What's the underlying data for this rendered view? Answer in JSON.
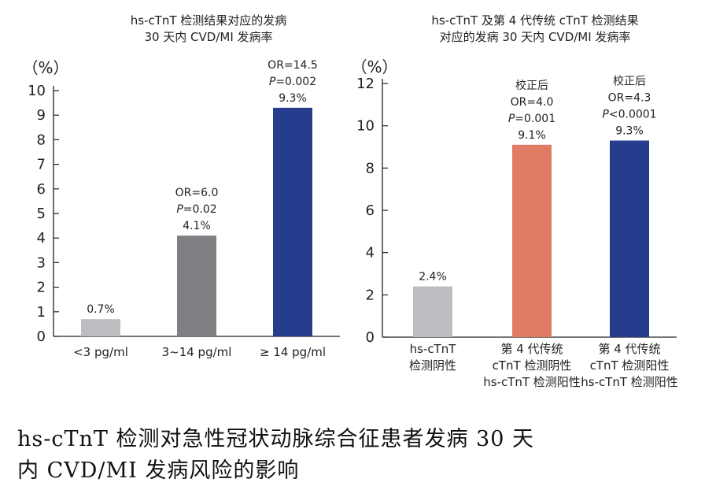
{
  "chart_data": [
    {
      "type": "bar",
      "title_lines": [
        "hs-cTnT 检测结果对应的发病",
        "30 天内 CVD/MI 发病率"
      ],
      "ylabel": "（%）",
      "ylim": [
        0,
        10
      ],
      "yticks": [
        "0",
        "1",
        "2",
        "3",
        "4",
        "5",
        "6",
        "7",
        "8",
        "9",
        "10"
      ],
      "categories": [
        [
          "<3 pg/ml"
        ],
        [
          "3~14 pg/ml"
        ],
        [
          "≥ 14 pg/ml"
        ]
      ],
      "values": [
        0.7,
        4.1,
        9.3
      ],
      "colors": [
        "#bcbdc1",
        "#7f8084",
        "#253d8c"
      ],
      "annotations": [
        [
          "0.7%"
        ],
        [
          "OR=6.0",
          "P=0.02",
          "4.1%"
        ],
        [
          "OR=14.5",
          "P=0.002",
          "9.3%"
        ]
      ]
    },
    {
      "type": "bar",
      "title_lines": [
        "hs-cTnT 及第 4 代传统 cTnT 检测结果",
        "对应的发病 30 天内 CVD/MI 发病率"
      ],
      "ylabel": "（%）",
      "ylim": [
        0,
        12
      ],
      "yticks": [
        "0",
        "2",
        "4",
        "6",
        "8",
        "10",
        "12"
      ],
      "categories": [
        [
          "hs-cTnT",
          "检测阴性"
        ],
        [
          "第 4 代传统",
          "cTnT 检测阴性",
          "hs-cTnT 检测阳性"
        ],
        [
          "第 4 代传统",
          "cTnT 检测阳性",
          "hs-cTnT 检测阳性"
        ]
      ],
      "values": [
        2.4,
        9.1,
        9.3
      ],
      "colors": [
        "#bcbdc1",
        "#e07b64",
        "#253d8c"
      ],
      "annotations": [
        [
          "2.4%"
        ],
        [
          "校正后",
          "OR=4.0",
          "P=0.001",
          "9.1%"
        ],
        [
          "校正后",
          "OR=4.3",
          "P<0.0001",
          "9.3%"
        ]
      ]
    }
  ],
  "caption_lines": [
    "hs-cTnT 检测对急性冠状动脉综合征患者发病 30 天",
    "内 CVD/MI 发病风险的影响"
  ]
}
